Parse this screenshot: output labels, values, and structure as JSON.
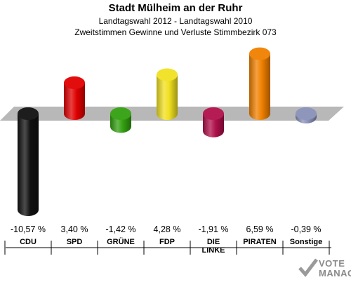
{
  "header": {
    "title": "Stadt Mülheim an der Ruhr",
    "subtitle": "Landtagswahl 2012 - Landtagswahl 2010",
    "caption": "Zweitstimmen Gewinne und Verluste Stimmbezirk 073"
  },
  "chart_data": {
    "type": "bar",
    "title": "Stadt Mülheim an der Ruhr",
    "subtitle": "Landtagswahl 2012 - Landtagswahl 2010 / Zweitstimmen Gewinne und Verluste Stimmbezirk 073",
    "categories": [
      "CDU",
      "SPD",
      "GRÜNE",
      "FDP",
      "DIE LINKE",
      "PIRATEN",
      "Sonstige"
    ],
    "values": [
      -10.57,
      3.4,
      -1.42,
      4.28,
      -1.91,
      6.59,
      -0.39
    ],
    "value_labels": [
      "-10,57 %",
      "3,40 %",
      "-1,42 %",
      "4,28 %",
      "-1,91 %",
      "6,59 %",
      "-0,39 %"
    ],
    "category_lines": [
      [
        "CDU"
      ],
      [
        "SPD"
      ],
      [
        "GRÜNE"
      ],
      [
        "FDP"
      ],
      [
        "DIE",
        "LINKE"
      ],
      [
        "PIRATEN"
      ],
      [
        "Sonstige"
      ]
    ],
    "colors": [
      "#111111",
      "#e00000",
      "#33a010",
      "#f0e020",
      "#b0104a",
      "#f08000",
      "#8890b8"
    ],
    "xlabel": "",
    "ylabel": "",
    "ylim": [
      -10.57,
      6.59
    ],
    "grid": false,
    "legend": "none"
  },
  "logo": {
    "text_line1": "VOTE",
    "text_line2": "MANAGER"
  }
}
